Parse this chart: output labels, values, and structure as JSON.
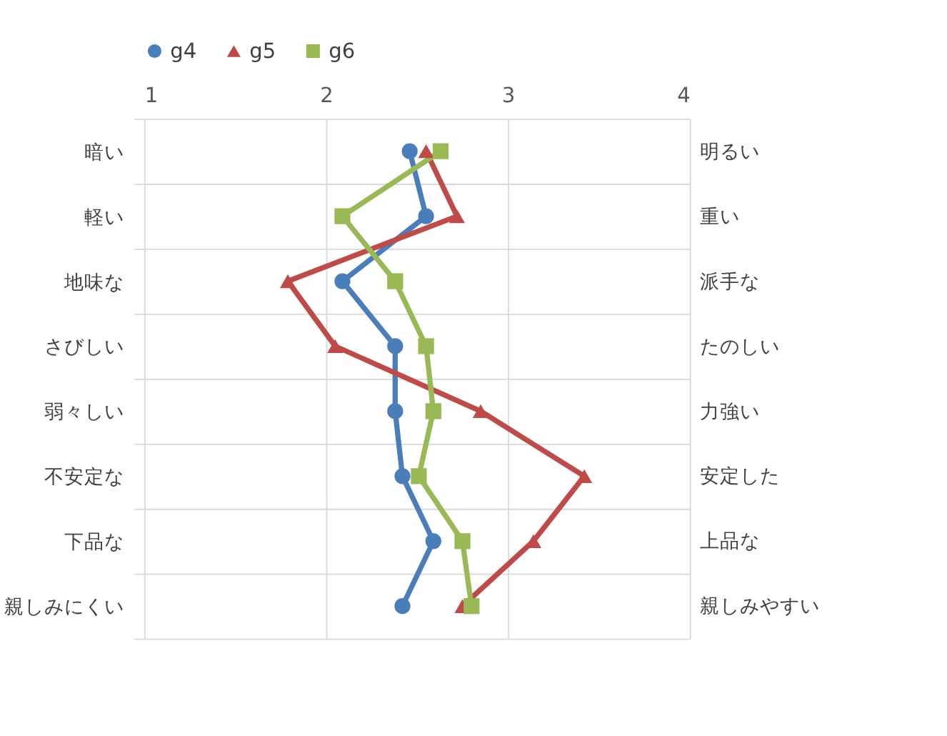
{
  "chart_data": {
    "type": "line",
    "orientation": "horizontal",
    "categories": [
      "暗い",
      "軽い",
      "地味な",
      "さびしい",
      "弱々しい",
      "不安定な",
      "下品な",
      "親しみにくい"
    ],
    "y2_categories": [
      "明るい",
      "重い",
      "派手な",
      "たのしい",
      "力強い",
      "安定した",
      "上品な",
      "親しみやすい"
    ],
    "series": [
      {
        "name": "g4",
        "color": "#4a7ebb",
        "marker": "circle",
        "values": [
          2.46,
          2.55,
          2.09,
          2.38,
          2.38,
          2.42,
          2.59,
          2.42
        ]
      },
      {
        "name": "g5",
        "color": "#be4b48",
        "marker": "triangle",
        "values": [
          2.55,
          2.72,
          1.79,
          2.05,
          2.85,
          3.42,
          3.14,
          2.75
        ]
      },
      {
        "name": "g6",
        "color": "#98b954",
        "marker": "square",
        "values": [
          2.63,
          2.09,
          2.38,
          2.55,
          2.59,
          2.51,
          2.75,
          2.8
        ]
      }
    ],
    "xlim": [
      1,
      4
    ],
    "xticks": [
      1,
      2,
      3,
      4
    ],
    "grid": true,
    "legend": "top",
    "line_style": "solid"
  }
}
